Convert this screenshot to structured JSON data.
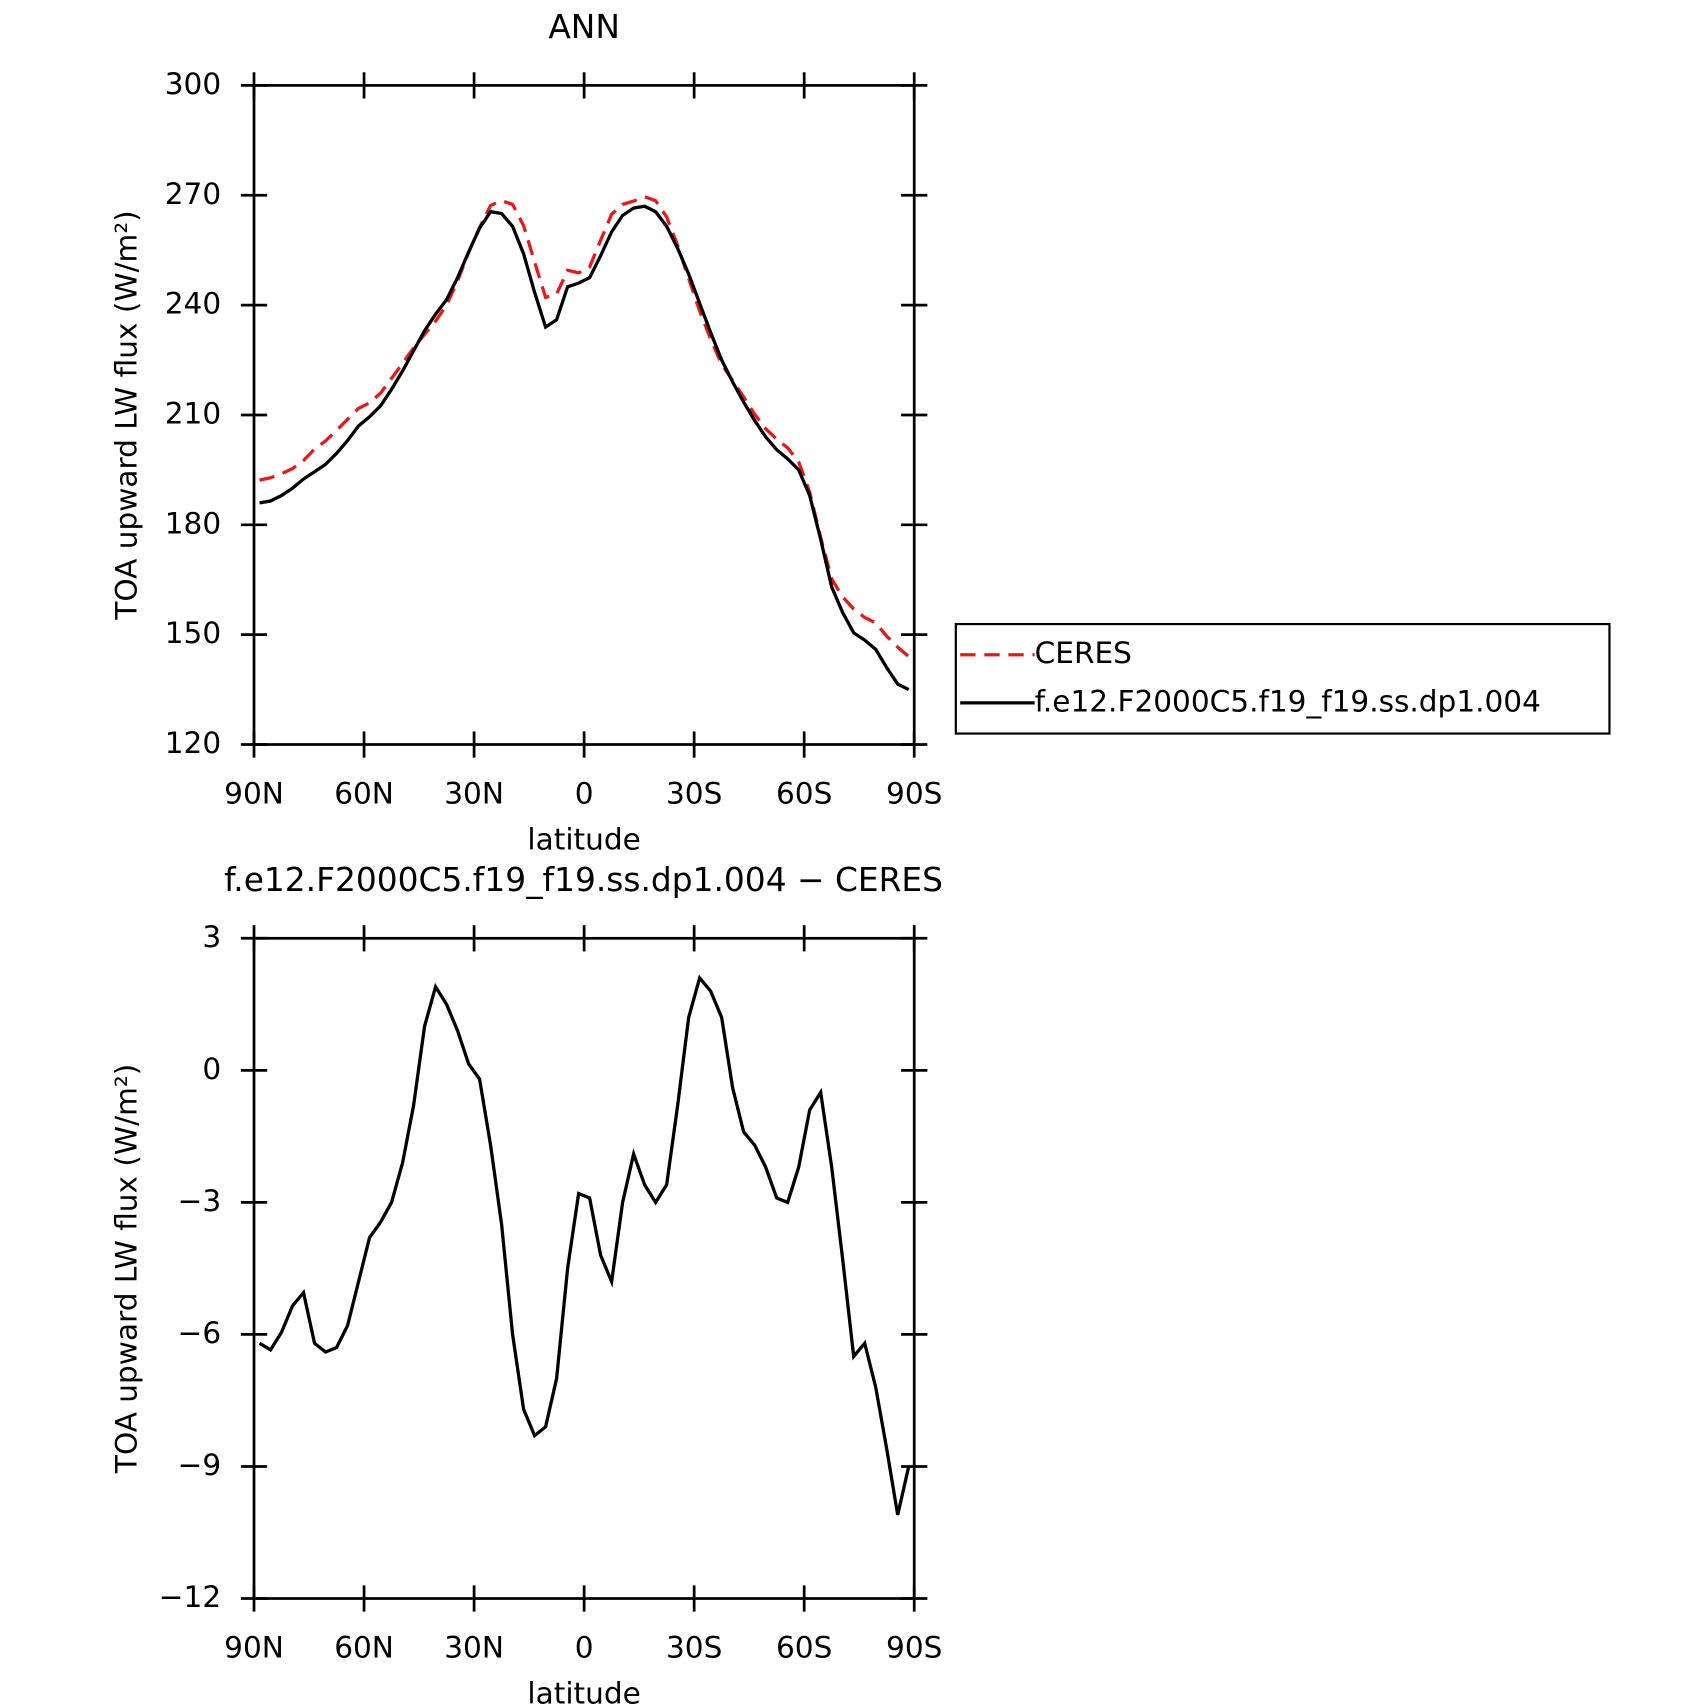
{
  "chart_data": [
    {
      "type": "line",
      "title": "ANN",
      "xlabel": "latitude",
      "ylabel": "TOA upward LW flux (W/m²)",
      "x": [
        88.5,
        85.5,
        82.5,
        79.5,
        76.5,
        73.5,
        70.5,
        67.5,
        64.5,
        61.5,
        58.5,
        55.5,
        52.5,
        49.5,
        46.5,
        43.5,
        40.5,
        37.5,
        34.5,
        31.5,
        28.5,
        25.5,
        22.5,
        19.5,
        16.5,
        13.5,
        10.5,
        7.5,
        4.5,
        1.5,
        -1.5,
        -4.5,
        -7.5,
        -10.5,
        -13.5,
        -16.5,
        -19.5,
        -22.5,
        -25.5,
        -28.5,
        -31.5,
        -34.5,
        -37.5,
        -40.5,
        -43.5,
        -46.5,
        -49.5,
        -52.5,
        -55.5,
        -58.5,
        -61.5,
        -64.5,
        -67.5,
        -70.5,
        -73.5,
        -76.5,
        -79.5,
        -82.5,
        -85.5,
        -88.5
      ],
      "series": [
        {
          "name": "CERES",
          "color": "#e41a1c",
          "dash": true,
          "values": [
            192.2,
            192.85,
            193.95,
            195.35,
            197.55,
            200.7,
            202.9,
            205.8,
            208.8,
            211.8,
            213.3,
            215.95,
            220,
            224.1,
            228.3,
            232,
            235.6,
            240,
            246.6,
            254.35,
            261.2,
            267.2,
            268.5,
            267.5,
            261.7,
            251.8,
            242.1,
            243,
            249.5,
            248.8,
            250.4,
            257.7,
            264.8,
            267.5,
            268.4,
            269.6,
            268.5,
            264.1,
            256.3,
            247.3,
            238.4,
            230.7,
            223.8,
            219.4,
            214.9,
            210.2,
            206.2,
            203.4,
            201,
            197.2,
            188.9,
            176.5,
            165.2,
            160.3,
            157,
            154.7,
            153.2,
            149.6,
            146.6,
            144
          ]
        },
        {
          "name": "f.e12.F2000C5.f19_f19.ss.dp1.004",
          "color": "#000000",
          "dash": false,
          "values": [
            186,
            186.5,
            188,
            190,
            192.5,
            194.5,
            196.5,
            199.5,
            203,
            207,
            209.5,
            212.5,
            217,
            222,
            227.5,
            233,
            237.5,
            241.5,
            247.5,
            254.5,
            261,
            265.5,
            265,
            261.5,
            254,
            243.5,
            234,
            236,
            245,
            246,
            247.5,
            253.5,
            260,
            264.5,
            266.5,
            267,
            265.5,
            261.5,
            255.5,
            248.5,
            240.5,
            232.5,
            225,
            219,
            213.5,
            208.5,
            204,
            200.5,
            198,
            195,
            188,
            176,
            163,
            156,
            150.5,
            148.5,
            146,
            141,
            136.5,
            135
          ]
        }
      ],
      "xlim": [
        90,
        -90
      ],
      "xticks": [
        {
          "value": 90,
          "label": "90N"
        },
        {
          "value": 60,
          "label": "60N"
        },
        {
          "value": 30,
          "label": "30N"
        },
        0,
        {
          "value": -30,
          "label": "30S"
        },
        {
          "value": -60,
          "label": "60S"
        },
        {
          "value": -90,
          "label": "90S"
        }
      ],
      "ylim": [
        120,
        300
      ],
      "yticks": [
        120,
        150,
        180,
        210,
        240,
        270,
        300
      ],
      "legend": "right"
    },
    {
      "type": "line",
      "title": "f.e12.F2000C5.f19_f19.ss.dp1.004 − CERES",
      "xlabel": "latitude",
      "ylabel": "TOA upward LW flux (W/m²)",
      "x": [
        88.5,
        85.5,
        82.5,
        79.5,
        76.5,
        73.5,
        70.5,
        67.5,
        64.5,
        61.5,
        58.5,
        55.5,
        52.5,
        49.5,
        46.5,
        43.5,
        40.5,
        37.5,
        34.5,
        31.5,
        28.5,
        25.5,
        22.5,
        19.5,
        16.5,
        13.5,
        10.5,
        7.5,
        4.5,
        1.5,
        -1.5,
        -4.5,
        -7.5,
        -10.5,
        -13.5,
        -16.5,
        -19.5,
        -22.5,
        -25.5,
        -28.5,
        -31.5,
        -34.5,
        -37.5,
        -40.5,
        -43.5,
        -46.5,
        -49.5,
        -52.5,
        -55.5,
        -58.5,
        -61.5,
        -64.5,
        -67.5,
        -70.5,
        -73.5,
        -76.5,
        -79.5,
        -82.5,
        -85.5,
        -88.5
      ],
      "series": [
        {
          "color": "#000000",
          "dash": false,
          "values": [
            -6.2,
            -6.35,
            -5.95,
            -5.35,
            -5.05,
            -6.2,
            -6.4,
            -6.3,
            -5.8,
            -4.8,
            -3.8,
            -3.45,
            -3.0,
            -2.1,
            -0.8,
            1.0,
            1.9,
            1.5,
            0.9,
            0.15,
            -0.2,
            -1.7,
            -3.5,
            -6.0,
            -7.7,
            -8.3,
            -8.1,
            -7.0,
            -4.5,
            -2.8,
            -2.9,
            -4.2,
            -4.8,
            -3.0,
            -1.9,
            -2.6,
            -3.0,
            -2.6,
            -0.8,
            1.2,
            2.1,
            1.8,
            1.2,
            -0.4,
            -1.4,
            -1.7,
            -2.2,
            -2.9,
            -3.0,
            -2.2,
            -0.9,
            -0.5,
            -2.2,
            -4.3,
            -6.5,
            -6.2,
            -7.2,
            -8.6,
            -10.1,
            -9.0
          ]
        }
      ],
      "xlim": [
        90,
        -90
      ],
      "xticks": [
        {
          "value": 90,
          "label": "90N"
        },
        {
          "value": 60,
          "label": "60N"
        },
        {
          "value": 30,
          "label": "30N"
        },
        0,
        {
          "value": -30,
          "label": "30S"
        },
        {
          "value": -60,
          "label": "60S"
        },
        {
          "value": -90,
          "label": "90S"
        }
      ],
      "ylim": [
        -12,
        3
      ],
      "yticks": [
        {
          "value": -12,
          "label": "−12"
        },
        {
          "value": -9,
          "label": "−9"
        },
        {
          "value": -6,
          "label": "−6"
        },
        {
          "value": -3,
          "label": "−3"
        },
        0,
        3
      ]
    }
  ]
}
